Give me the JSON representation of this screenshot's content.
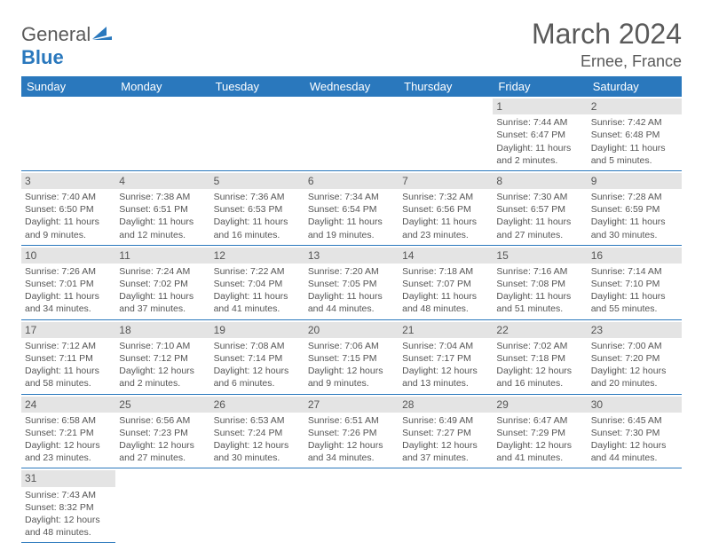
{
  "logo": {
    "general": "General",
    "blue": "Blue"
  },
  "title": "March 2024",
  "location": "Ernee, France",
  "colors": {
    "header_bg": "#2a78bd",
    "header_text": "#ffffff",
    "daynum_bg": "#e4e4e4",
    "row_divider": "#2a78bd",
    "text": "#555555",
    "title_text": "#5a5a5a"
  },
  "weekdays": [
    "Sunday",
    "Monday",
    "Tuesday",
    "Wednesday",
    "Thursday",
    "Friday",
    "Saturday"
  ],
  "weeks": [
    [
      {
        "n": "",
        "sr": "",
        "ss": "",
        "dl": ""
      },
      {
        "n": "",
        "sr": "",
        "ss": "",
        "dl": ""
      },
      {
        "n": "",
        "sr": "",
        "ss": "",
        "dl": ""
      },
      {
        "n": "",
        "sr": "",
        "ss": "",
        "dl": ""
      },
      {
        "n": "",
        "sr": "",
        "ss": "",
        "dl": ""
      },
      {
        "n": "1",
        "sr": "Sunrise: 7:44 AM",
        "ss": "Sunset: 6:47 PM",
        "dl": "Daylight: 11 hours and 2 minutes."
      },
      {
        "n": "2",
        "sr": "Sunrise: 7:42 AM",
        "ss": "Sunset: 6:48 PM",
        "dl": "Daylight: 11 hours and 5 minutes."
      }
    ],
    [
      {
        "n": "3",
        "sr": "Sunrise: 7:40 AM",
        "ss": "Sunset: 6:50 PM",
        "dl": "Daylight: 11 hours and 9 minutes."
      },
      {
        "n": "4",
        "sr": "Sunrise: 7:38 AM",
        "ss": "Sunset: 6:51 PM",
        "dl": "Daylight: 11 hours and 12 minutes."
      },
      {
        "n": "5",
        "sr": "Sunrise: 7:36 AM",
        "ss": "Sunset: 6:53 PM",
        "dl": "Daylight: 11 hours and 16 minutes."
      },
      {
        "n": "6",
        "sr": "Sunrise: 7:34 AM",
        "ss": "Sunset: 6:54 PM",
        "dl": "Daylight: 11 hours and 19 minutes."
      },
      {
        "n": "7",
        "sr": "Sunrise: 7:32 AM",
        "ss": "Sunset: 6:56 PM",
        "dl": "Daylight: 11 hours and 23 minutes."
      },
      {
        "n": "8",
        "sr": "Sunrise: 7:30 AM",
        "ss": "Sunset: 6:57 PM",
        "dl": "Daylight: 11 hours and 27 minutes."
      },
      {
        "n": "9",
        "sr": "Sunrise: 7:28 AM",
        "ss": "Sunset: 6:59 PM",
        "dl": "Daylight: 11 hours and 30 minutes."
      }
    ],
    [
      {
        "n": "10",
        "sr": "Sunrise: 7:26 AM",
        "ss": "Sunset: 7:01 PM",
        "dl": "Daylight: 11 hours and 34 minutes."
      },
      {
        "n": "11",
        "sr": "Sunrise: 7:24 AM",
        "ss": "Sunset: 7:02 PM",
        "dl": "Daylight: 11 hours and 37 minutes."
      },
      {
        "n": "12",
        "sr": "Sunrise: 7:22 AM",
        "ss": "Sunset: 7:04 PM",
        "dl": "Daylight: 11 hours and 41 minutes."
      },
      {
        "n": "13",
        "sr": "Sunrise: 7:20 AM",
        "ss": "Sunset: 7:05 PM",
        "dl": "Daylight: 11 hours and 44 minutes."
      },
      {
        "n": "14",
        "sr": "Sunrise: 7:18 AM",
        "ss": "Sunset: 7:07 PM",
        "dl": "Daylight: 11 hours and 48 minutes."
      },
      {
        "n": "15",
        "sr": "Sunrise: 7:16 AM",
        "ss": "Sunset: 7:08 PM",
        "dl": "Daylight: 11 hours and 51 minutes."
      },
      {
        "n": "16",
        "sr": "Sunrise: 7:14 AM",
        "ss": "Sunset: 7:10 PM",
        "dl": "Daylight: 11 hours and 55 minutes."
      }
    ],
    [
      {
        "n": "17",
        "sr": "Sunrise: 7:12 AM",
        "ss": "Sunset: 7:11 PM",
        "dl": "Daylight: 11 hours and 58 minutes."
      },
      {
        "n": "18",
        "sr": "Sunrise: 7:10 AM",
        "ss": "Sunset: 7:12 PM",
        "dl": "Daylight: 12 hours and 2 minutes."
      },
      {
        "n": "19",
        "sr": "Sunrise: 7:08 AM",
        "ss": "Sunset: 7:14 PM",
        "dl": "Daylight: 12 hours and 6 minutes."
      },
      {
        "n": "20",
        "sr": "Sunrise: 7:06 AM",
        "ss": "Sunset: 7:15 PM",
        "dl": "Daylight: 12 hours and 9 minutes."
      },
      {
        "n": "21",
        "sr": "Sunrise: 7:04 AM",
        "ss": "Sunset: 7:17 PM",
        "dl": "Daylight: 12 hours and 13 minutes."
      },
      {
        "n": "22",
        "sr": "Sunrise: 7:02 AM",
        "ss": "Sunset: 7:18 PM",
        "dl": "Daylight: 12 hours and 16 minutes."
      },
      {
        "n": "23",
        "sr": "Sunrise: 7:00 AM",
        "ss": "Sunset: 7:20 PM",
        "dl": "Daylight: 12 hours and 20 minutes."
      }
    ],
    [
      {
        "n": "24",
        "sr": "Sunrise: 6:58 AM",
        "ss": "Sunset: 7:21 PM",
        "dl": "Daylight: 12 hours and 23 minutes."
      },
      {
        "n": "25",
        "sr": "Sunrise: 6:56 AM",
        "ss": "Sunset: 7:23 PM",
        "dl": "Daylight: 12 hours and 27 minutes."
      },
      {
        "n": "26",
        "sr": "Sunrise: 6:53 AM",
        "ss": "Sunset: 7:24 PM",
        "dl": "Daylight: 12 hours and 30 minutes."
      },
      {
        "n": "27",
        "sr": "Sunrise: 6:51 AM",
        "ss": "Sunset: 7:26 PM",
        "dl": "Daylight: 12 hours and 34 minutes."
      },
      {
        "n": "28",
        "sr": "Sunrise: 6:49 AM",
        "ss": "Sunset: 7:27 PM",
        "dl": "Daylight: 12 hours and 37 minutes."
      },
      {
        "n": "29",
        "sr": "Sunrise: 6:47 AM",
        "ss": "Sunset: 7:29 PM",
        "dl": "Daylight: 12 hours and 41 minutes."
      },
      {
        "n": "30",
        "sr": "Sunrise: 6:45 AM",
        "ss": "Sunset: 7:30 PM",
        "dl": "Daylight: 12 hours and 44 minutes."
      }
    ],
    [
      {
        "n": "31",
        "sr": "Sunrise: 7:43 AM",
        "ss": "Sunset: 8:32 PM",
        "dl": "Daylight: 12 hours and 48 minutes."
      },
      {
        "n": "",
        "sr": "",
        "ss": "",
        "dl": ""
      },
      {
        "n": "",
        "sr": "",
        "ss": "",
        "dl": ""
      },
      {
        "n": "",
        "sr": "",
        "ss": "",
        "dl": ""
      },
      {
        "n": "",
        "sr": "",
        "ss": "",
        "dl": ""
      },
      {
        "n": "",
        "sr": "",
        "ss": "",
        "dl": ""
      },
      {
        "n": "",
        "sr": "",
        "ss": "",
        "dl": ""
      }
    ]
  ]
}
